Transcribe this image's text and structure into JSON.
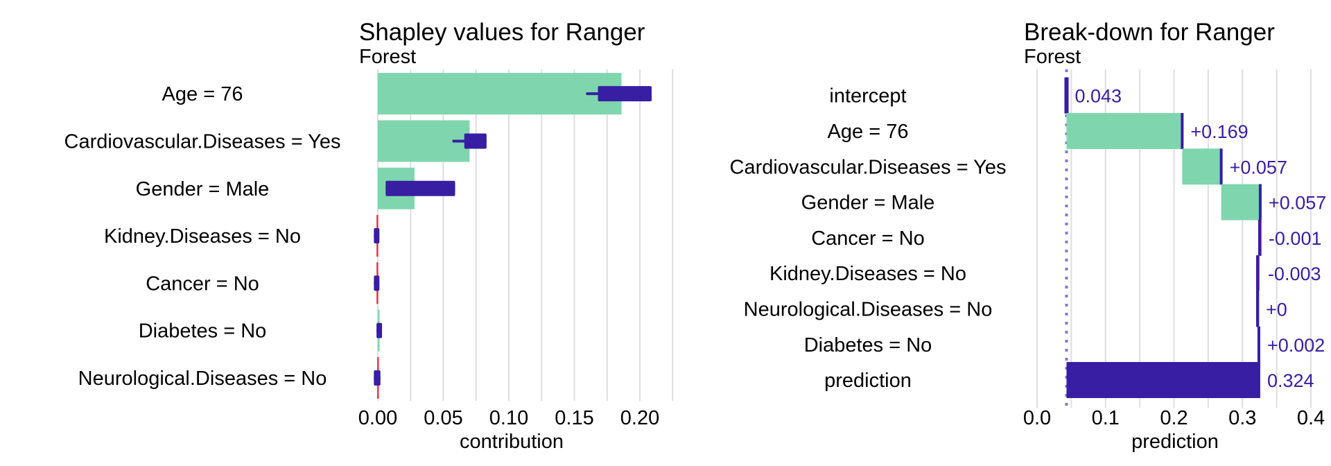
{
  "colors": {
    "positive": "#7fd6ae",
    "negative": "#e8354f",
    "ink": "#371ea3",
    "grid": "#dedede",
    "label": "#371ea3"
  },
  "chart_data": [
    {
      "type": "bar",
      "title": "Shapley values for Ranger",
      "subtitle": "Forest",
      "xlabel": "contribution",
      "ylabel": "",
      "xlim": [
        -0.002,
        0.225
      ],
      "xticks": [
        "0.00",
        "0.05",
        "0.10",
        "0.15",
        "0.20"
      ],
      "xtick_values": [
        0,
        0.05,
        0.1,
        0.15,
        0.2
      ],
      "categories": [
        "Age = 76",
        "Cardiovascular.Diseases = Yes",
        "Gender = Male",
        "Kidney.Diseases = No",
        "Cancer = No",
        "Diabetes = No",
        "Neurological.Diseases = No"
      ],
      "values": [
        0.186,
        0.07,
        0.028,
        -0.001,
        -0.001,
        0.0003,
        -0.0005
      ],
      "boxplots": [
        {
          "whisker_low": 0.159,
          "q1": 0.168,
          "q3": 0.209,
          "whisker_high": 0.209
        },
        {
          "whisker_low": 0.057,
          "q1": 0.066,
          "q3": 0.083,
          "whisker_high": 0.083
        },
        {
          "whisker_low": 0.006,
          "q1": 0.006,
          "q3": 0.059,
          "whisker_high": 0.059
        },
        {
          "whisker_low": -0.003,
          "q1": -0.003,
          "q3": 0.001,
          "whisker_high": 0.001
        },
        {
          "whisker_low": -0.003,
          "q1": -0.003,
          "q3": 0.001,
          "whisker_high": 0.001
        },
        {
          "whisker_low": -0.001,
          "q1": -0.001,
          "q3": 0.003,
          "whisker_high": 0.003
        },
        {
          "whisker_low": -0.003,
          "q1": -0.003,
          "q3": 0.002,
          "whisker_high": 0.002
        }
      ]
    },
    {
      "type": "bar",
      "title": "Break-down for Ranger",
      "subtitle": "Forest",
      "xlabel": "prediction",
      "ylabel": "",
      "xlim": [
        -0.02,
        0.43
      ],
      "xticks": [
        "0.0",
        "0.1",
        "0.2",
        "0.3",
        "0.4"
      ],
      "xtick_values": [
        0,
        0.1,
        0.2,
        0.3,
        0.4
      ],
      "baseline": 0.043,
      "categories": [
        "intercept",
        "Age = 76",
        "Cardiovascular.Diseases = Yes",
        "Gender = Male",
        "Cancer = No",
        "Kidney.Diseases = No",
        "Neurological.Diseases = No",
        "Diabetes = No",
        "prediction"
      ],
      "values": [
        0.043,
        0.169,
        0.057,
        0.057,
        -0.001,
        -0.003,
        0,
        0.002,
        0.324
      ],
      "labels": [
        "0.043",
        "+0.169",
        "+0.057",
        "+0.057",
        "-0.001",
        "-0.003",
        "+0",
        "+0.002",
        "0.324"
      ]
    }
  ]
}
